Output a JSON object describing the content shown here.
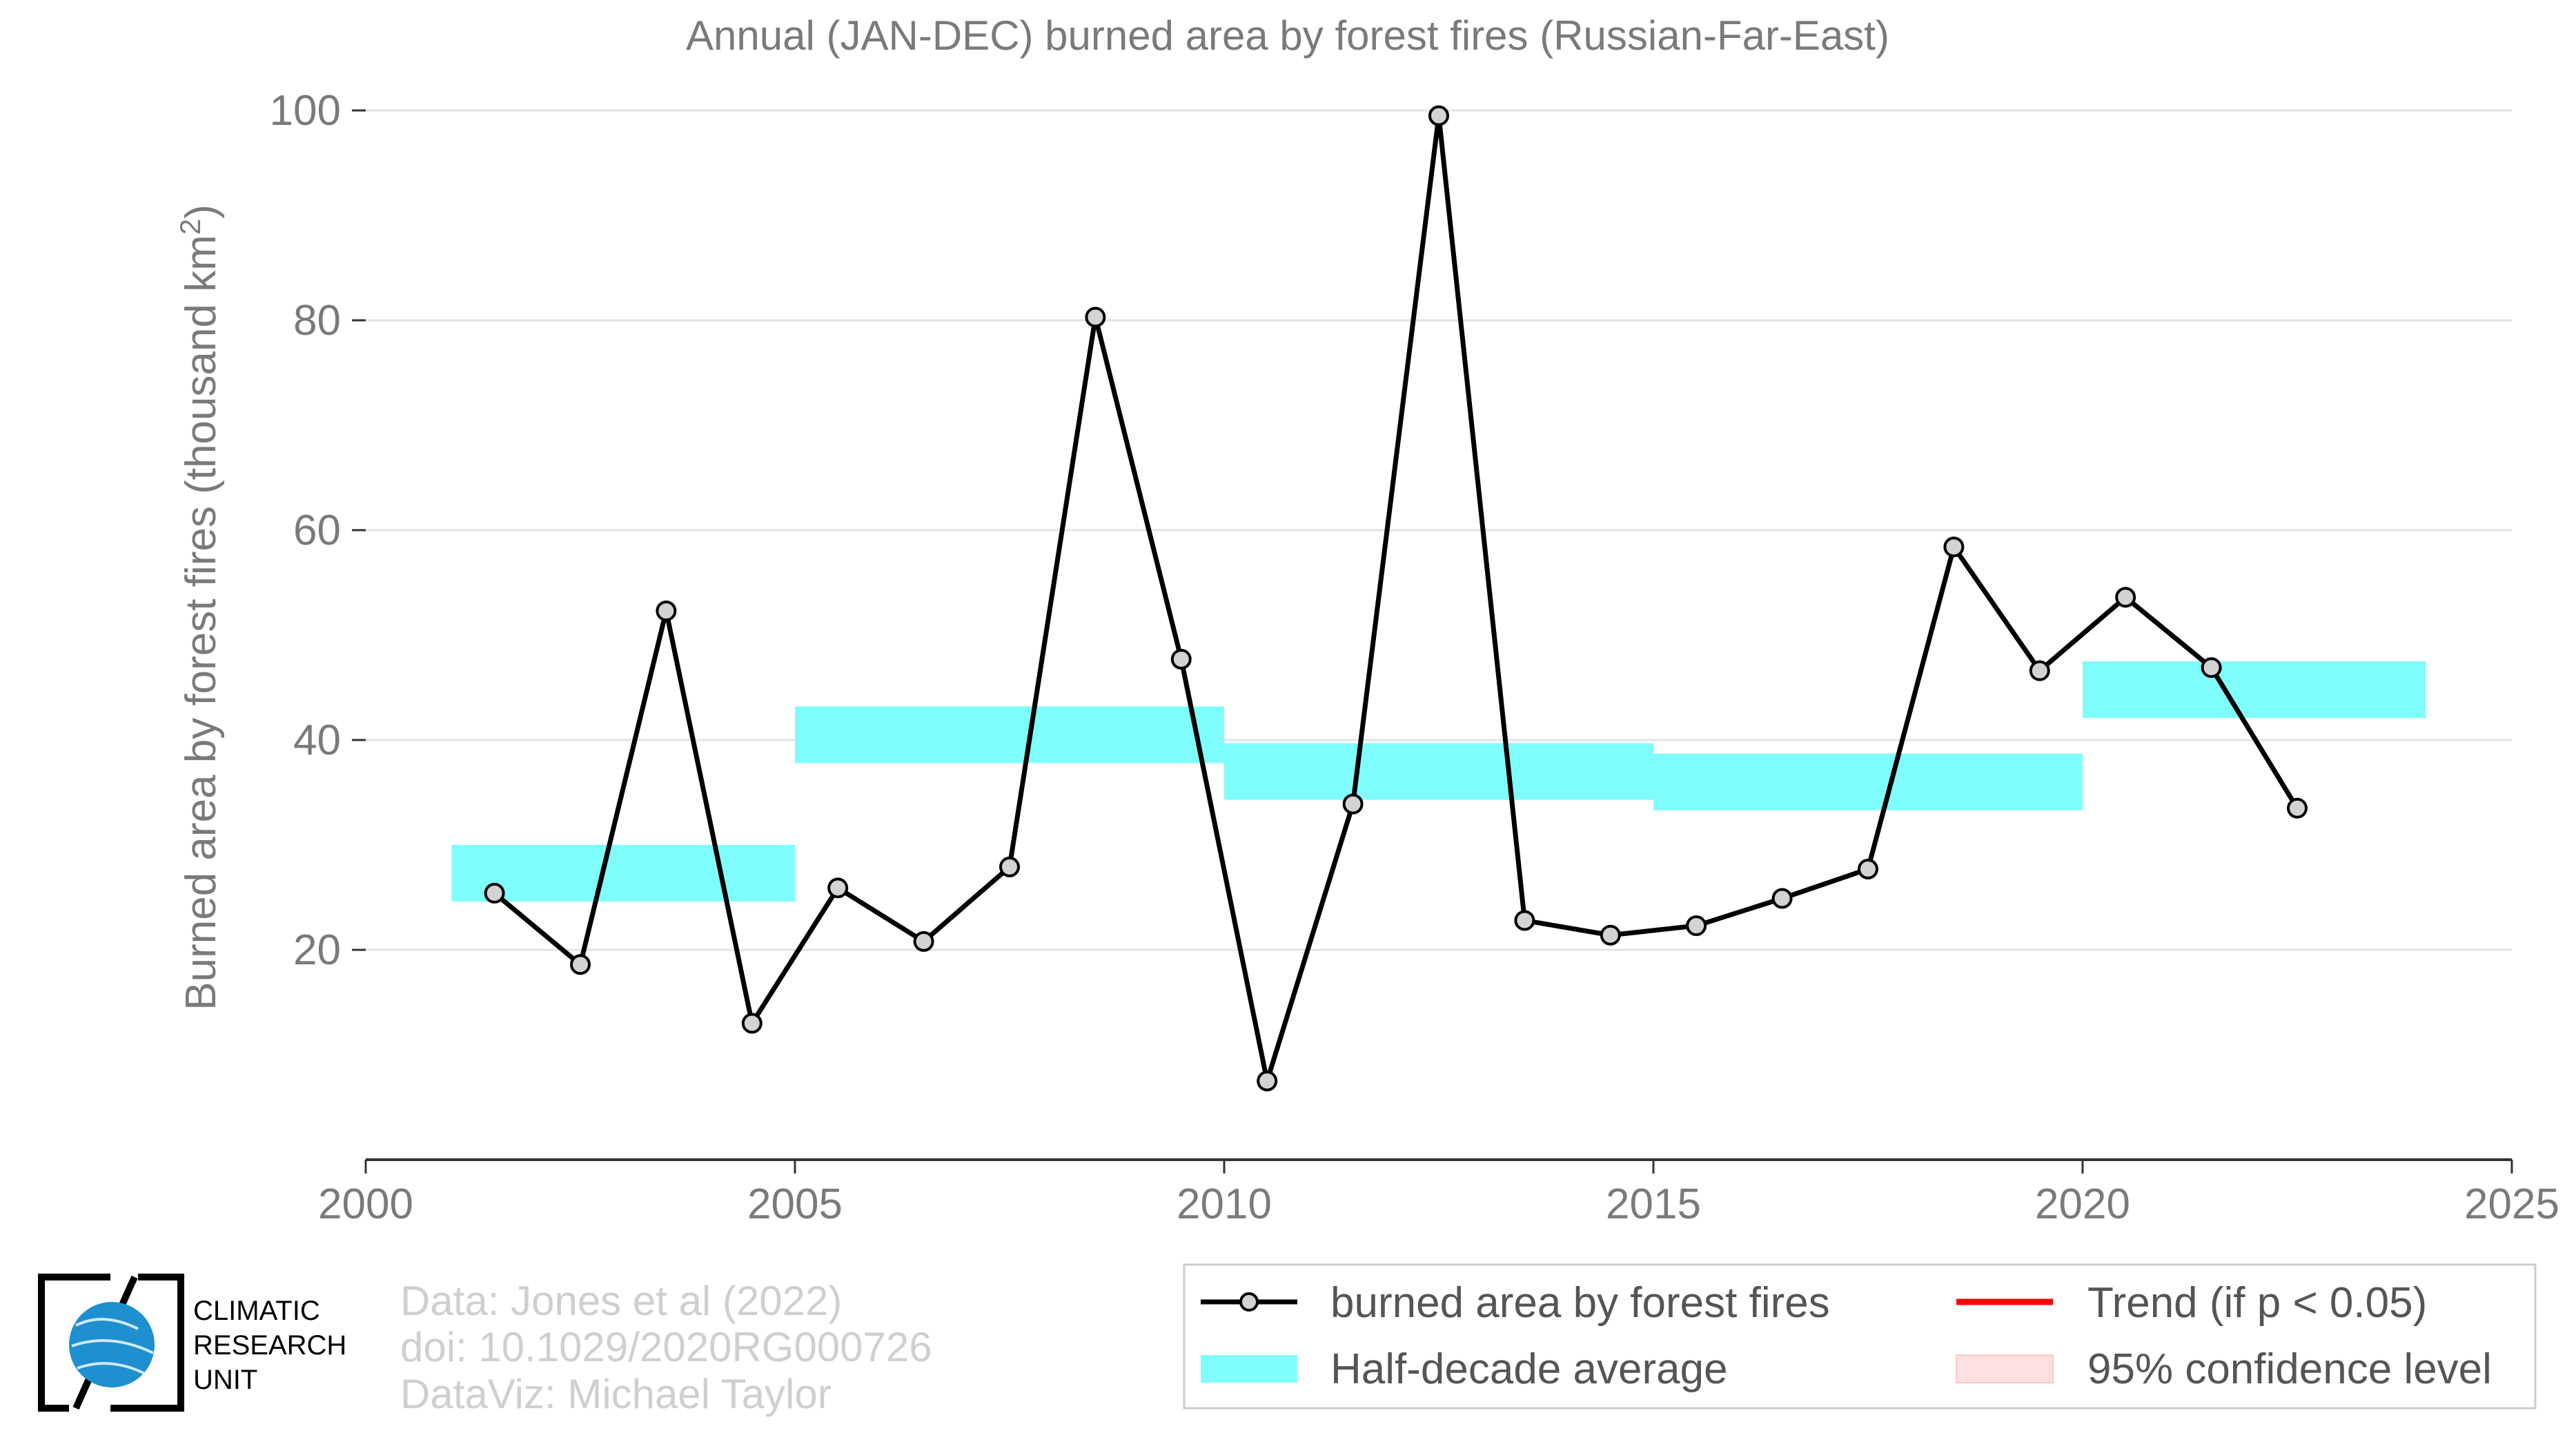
{
  "chart_data": {
    "type": "line",
    "title": "Annual (JAN-DEC) burned area by forest fires (Russian-Far-East)",
    "ylabel": "Burned area by forest fires (thousand km",
    "ylabel_sup": "2",
    "ylabel_end": ")",
    "xlim": [
      2000,
      2025
    ],
    "ylim": [
      0,
      100
    ],
    "xticks": [
      2000,
      2005,
      2010,
      2015,
      2020,
      2025
    ],
    "yticks": [
      20,
      40,
      60,
      80,
      100
    ],
    "grid": true,
    "series": [
      {
        "name": "burned area by forest fires",
        "color": "#000000",
        "marker_fill": "#d3d3d3",
        "x": [
          2001.5,
          2002.5,
          2003.5,
          2004.5,
          2005.5,
          2006.5,
          2007.5,
          2008.5,
          2009.5,
          2010.5,
          2011.5,
          2012.5,
          2013.5,
          2014.5,
          2015.5,
          2016.5,
          2017.5,
          2018.5,
          2019.5,
          2020.5,
          2021.5,
          2022.5
        ],
        "y": [
          25.4,
          18.6,
          52.3,
          13.0,
          25.9,
          20.8,
          27.9,
          80.3,
          47.7,
          7.5,
          33.9,
          99.5,
          22.8,
          21.4,
          22.3,
          24.9,
          27.7,
          58.4,
          46.6,
          53.6,
          46.9,
          33.5
        ]
      }
    ],
    "half_decade_average": {
      "name": "Half-decade average",
      "color": "#7ffdfd",
      "segments": [
        {
          "x0": 2001,
          "x1": 2005,
          "y": 27.3
        },
        {
          "x0": 2005,
          "x1": 2010,
          "y": 40.5
        },
        {
          "x0": 2010,
          "x1": 2015,
          "y": 37.0
        },
        {
          "x0": 2015,
          "x1": 2020,
          "y": 36.0
        },
        {
          "x0": 2020,
          "x1": 2024,
          "y": 44.8
        }
      ]
    },
    "legend": {
      "placement": "bottom-right",
      "entries": [
        {
          "label": "burned area by forest fires",
          "kind": "line-marker",
          "color": "#000000"
        },
        {
          "label": "Trend (if p < 0.05)",
          "kind": "line",
          "color": "#ff0000"
        },
        {
          "label": "Half-decade average",
          "kind": "band",
          "color": "#7ffdfd"
        },
        {
          "label": "95% confidence level",
          "kind": "band",
          "color": "#ffe0e0"
        }
      ]
    }
  },
  "credits": [
    "Data: Jones et al (2022)",
    "doi: 10.1029/2020RG000726",
    "DataViz: Michael Taylor"
  ],
  "logo": {
    "lines": [
      "CLIMATIC",
      "RESEARCH",
      "UNIT"
    ],
    "globe_color": "#1e90d0"
  }
}
